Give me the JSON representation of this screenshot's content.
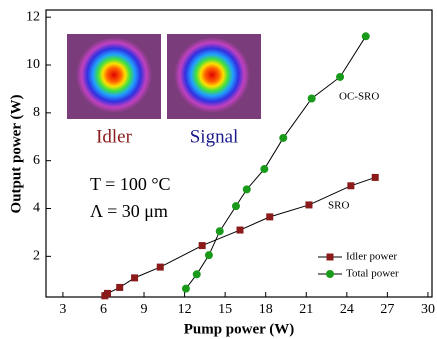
{
  "chart_data": {
    "type": "line",
    "xlabel": "Pump power (W)",
    "ylabel": "Output power (W)",
    "xlim": [
      1.75,
      30.3
    ],
    "xticks": [
      3,
      6,
      9,
      12,
      15,
      18,
      21,
      24,
      27,
      30
    ],
    "ylim": [
      0.3,
      12.3
    ],
    "yticks": [
      2,
      4,
      6,
      8,
      10,
      12
    ],
    "legend": "lower right",
    "series": [
      {
        "name": "Idler power",
        "color": "#8b1a1a",
        "marker": "square",
        "x": [
          6.1,
          6.3,
          7.2,
          8.3,
          10.2,
          13.3,
          16.1,
          18.3,
          21.2,
          24.3,
          26.1
        ],
        "values": [
          0.35,
          0.45,
          0.7,
          1.1,
          1.55,
          2.45,
          3.1,
          3.65,
          4.15,
          4.95,
          5.3
        ]
      },
      {
        "name": "Total power",
        "color": "#1a9a1a",
        "marker": "circle",
        "x": [
          12.1,
          12.9,
          13.8,
          14.6,
          15.8,
          16.6,
          17.9,
          19.3,
          21.4,
          23.5,
          25.4
        ],
        "values": [
          0.65,
          1.25,
          2.05,
          3.05,
          4.1,
          4.8,
          5.65,
          6.95,
          8.6,
          9.5,
          11.2
        ]
      }
    ],
    "annotations": [
      "OC-SRO",
      "SRO",
      "T = 100 °C",
      "Λ = 30 μm",
      "Idler",
      "Signal"
    ]
  }
}
